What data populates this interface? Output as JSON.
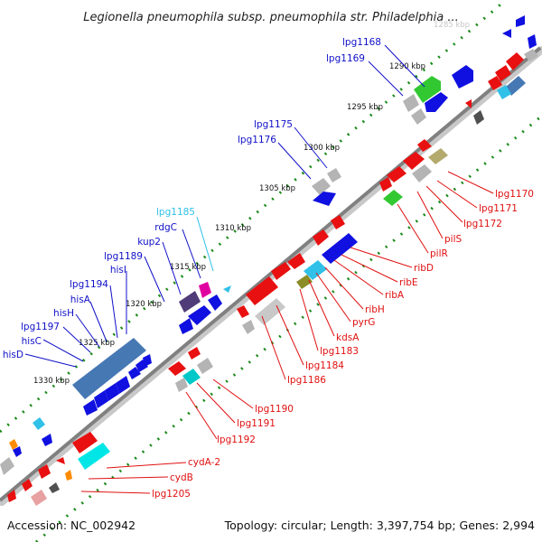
{
  "title": "Legionella pneumophila subsp. pneumophila str. Philadelphia ...",
  "footer": {
    "accession": "Accession: NC_002942",
    "summary": "Topology: circular; Length: 3,397,754 bp; Genes: 2,994"
  },
  "colors": {
    "backbone": "#808080",
    "tick": "#1a8a1a",
    "forward_gene": "#1010e0",
    "reverse_gene": "#e81010",
    "label_forward": "#1010c8",
    "label_reverse": "#e01010",
    "label_highlight": "#30c0e8"
  },
  "scale_marks": [
    {
      "label": "1285 kbp",
      "faint": true
    },
    {
      "label": "1290 kbp"
    },
    {
      "label": "1295 kbp"
    },
    {
      "label": "1300 kbp"
    },
    {
      "label": "1305 kbp"
    },
    {
      "label": "1310 kbp"
    },
    {
      "label": "1315 kbp"
    },
    {
      "label": "1320 kbp"
    },
    {
      "label": "1325 kbp"
    },
    {
      "label": "1330 kbp"
    }
  ],
  "forward_labels": [
    {
      "text": "lpg1168"
    },
    {
      "text": "lpg1169"
    },
    {
      "text": "lpg1175"
    },
    {
      "text": "lpg1176"
    },
    {
      "text": "lpg1185",
      "highlight": true
    },
    {
      "text": "rdgC"
    },
    {
      "text": "kup2"
    },
    {
      "text": "lpg1189"
    },
    {
      "text": "hisI"
    },
    {
      "text": "lpg1194"
    },
    {
      "text": "hisA"
    },
    {
      "text": "hisH"
    },
    {
      "text": "lpg1197"
    },
    {
      "text": "hisC"
    },
    {
      "text": "hisD"
    }
  ],
  "reverse_labels": [
    {
      "text": "lpg1170"
    },
    {
      "text": "lpg1171"
    },
    {
      "text": "lpg1172"
    },
    {
      "text": "pilS"
    },
    {
      "text": "pilR"
    },
    {
      "text": "ribD"
    },
    {
      "text": "ribE"
    },
    {
      "text": "ribA"
    },
    {
      "text": "ribH"
    },
    {
      "text": "pyrG"
    },
    {
      "text": "kdsA"
    },
    {
      "text": "lpg1183"
    },
    {
      "text": "lpg1184"
    },
    {
      "text": "lpg1186"
    },
    {
      "text": "lpg1190"
    },
    {
      "text": "lpg1191"
    },
    {
      "text": "lpg1192"
    },
    {
      "text": "cydA-2"
    },
    {
      "text": "cydB"
    },
    {
      "text": "lpg1205"
    }
  ]
}
